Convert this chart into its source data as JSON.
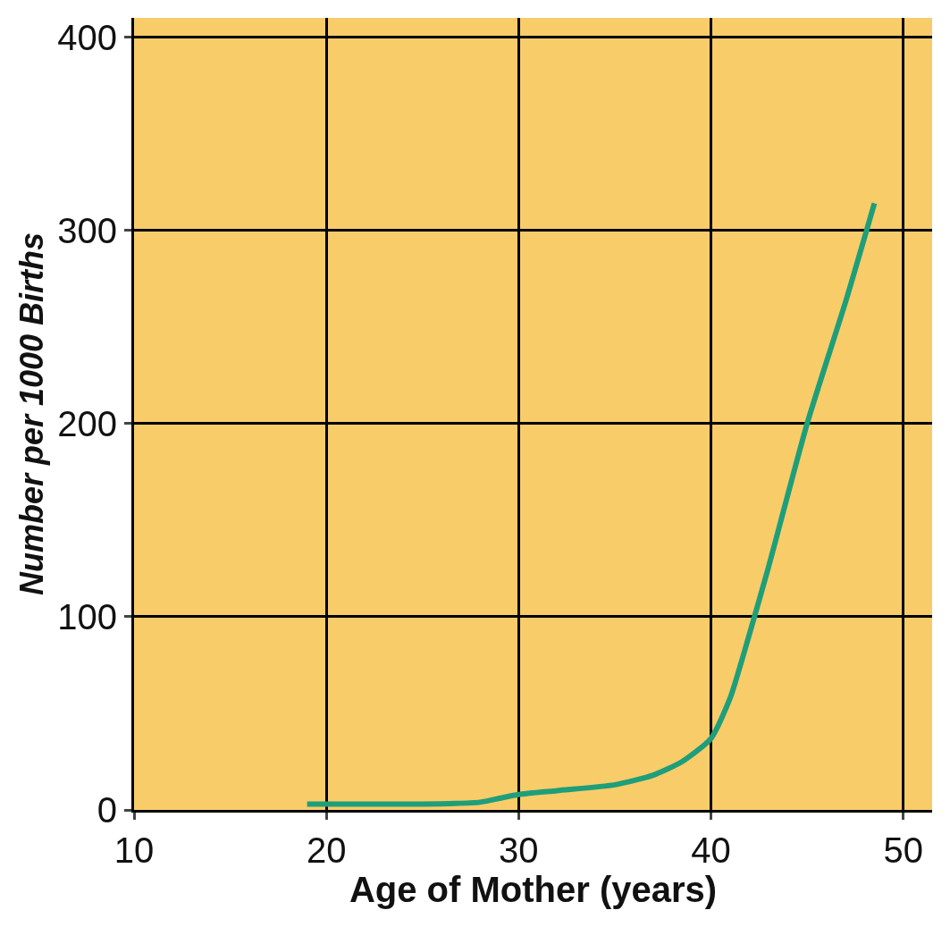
{
  "chart_data": {
    "type": "line",
    "xlabel": "Age of Mother (years)",
    "ylabel": "Number per 1000 Births",
    "xlim": [
      10,
      51.5
    ],
    "ylim": [
      0,
      410
    ],
    "xticks": [
      10,
      20,
      30,
      40,
      50
    ],
    "yticks": [
      0,
      100,
      200,
      300,
      400
    ],
    "grid": true,
    "marker": "none",
    "line_style": "solid",
    "series": [
      {
        "color": "#1f9e7a",
        "x": [
          19,
          22,
          25,
          28,
          29,
          30,
          32,
          35,
          37,
          38.5,
          40,
          41,
          42,
          43,
          45,
          47,
          48.5
        ],
        "values": [
          3,
          3,
          3,
          4,
          6,
          8,
          10,
          13,
          18,
          25,
          37,
          58,
          91,
          126,
          200,
          263,
          314
        ]
      }
    ]
  }
}
